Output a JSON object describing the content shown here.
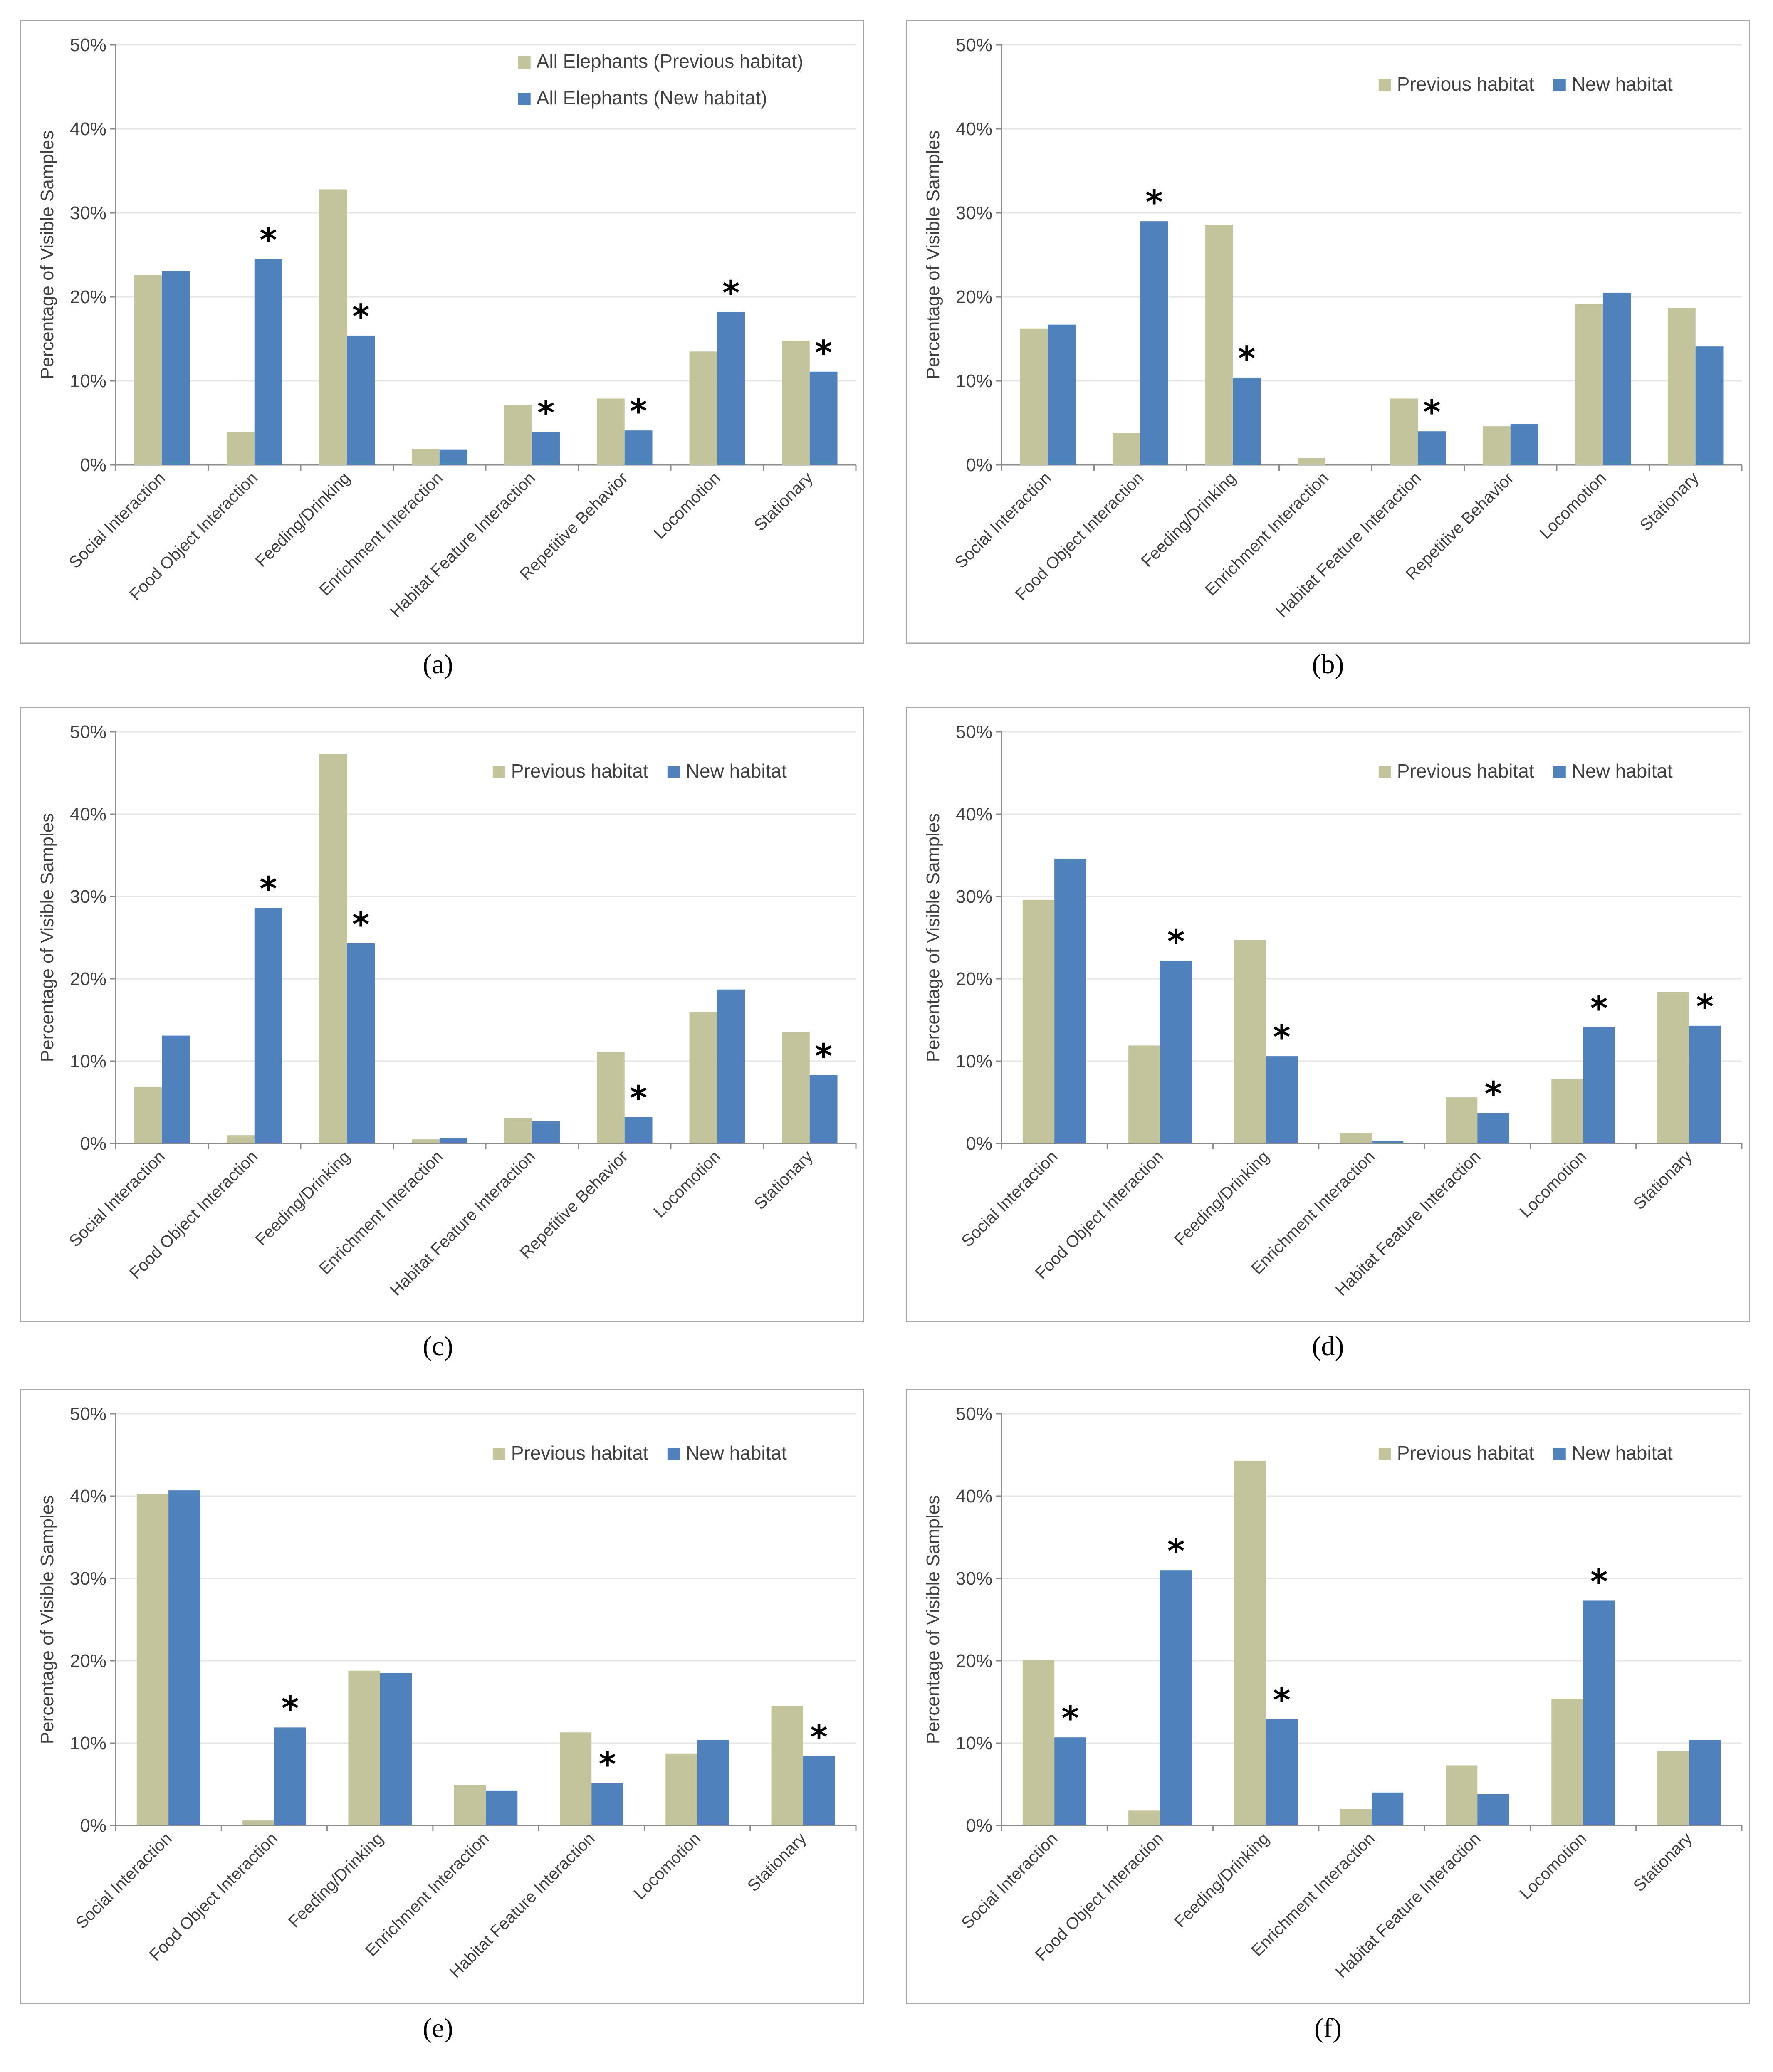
{
  "colors": {
    "previous": "#c4c49c",
    "new": "#4f81bd",
    "grid": "#e6e6e6",
    "axis": "#8c8c8c",
    "frame": "#a6a6a6",
    "text": "#404040"
  },
  "chart_data": [
    {
      "panel": "a",
      "type": "bar",
      "ylabel": "Percentage of Visible Samples",
      "ylim": [
        0,
        50
      ],
      "yticks": [
        "0%",
        "10%",
        "20%",
        "30%",
        "40%",
        "50%"
      ],
      "categories": [
        "Social Interaction",
        "Food Object Interaction",
        "Feeding/Drinking",
        "Enrichment Interaction",
        "Habitat Feature Interaction",
        "Repetitive Behavior",
        "Locomotion",
        "Stationary"
      ],
      "series": [
        {
          "name": "All Elephants (Previous habitat)",
          "values": [
            22.6,
            3.9,
            32.8,
            1.9,
            7.1,
            7.9,
            13.5,
            14.8
          ]
        },
        {
          "name": "All Elephants (New habitat)",
          "values": [
            23.1,
            24.5,
            15.4,
            1.8,
            3.9,
            4.1,
            18.2,
            11.1
          ]
        }
      ],
      "significant": [
        false,
        true,
        true,
        false,
        true,
        true,
        true,
        true
      ],
      "legend_layout": "stacked",
      "caption": "(a)"
    },
    {
      "panel": "b",
      "type": "bar",
      "ylabel": "Percentage of Visible Samples",
      "ylim": [
        0,
        50
      ],
      "yticks": [
        "0%",
        "10%",
        "20%",
        "30%",
        "40%",
        "50%"
      ],
      "categories": [
        "Social Interaction",
        "Food Object Interaction",
        "Feeding/Drinking",
        "Enrichment Interaction",
        "Habitat Feature Interaction",
        "Repetitive Behavior",
        "Locomotion",
        "Stationary"
      ],
      "series": [
        {
          "name": "Previous habitat",
          "values": [
            16.2,
            3.8,
            28.6,
            0.8,
            7.9,
            4.6,
            19.2,
            18.7
          ]
        },
        {
          "name": "New habitat",
          "values": [
            16.7,
            29.0,
            10.4,
            0,
            4.0,
            4.9,
            20.5,
            14.1
          ]
        }
      ],
      "significant": [
        false,
        true,
        true,
        false,
        true,
        false,
        false,
        false
      ],
      "legend_layout": "inline",
      "caption": "(b)"
    },
    {
      "panel": "c",
      "type": "bar",
      "ylabel": "Percentage of Visible Samples",
      "ylim": [
        0,
        50
      ],
      "yticks": [
        "0%",
        "10%",
        "20%",
        "30%",
        "40%",
        "50%"
      ],
      "categories": [
        "Social Interaction",
        "Food Object Interaction",
        "Feeding/Drinking",
        "Enrichment Interaction",
        "Habitat Feature Interaction",
        "Repetitive Behavior",
        "Locomotion",
        "Stationary"
      ],
      "series": [
        {
          "name": "Previous habitat",
          "values": [
            6.9,
            1.0,
            47.3,
            0.5,
            3.1,
            11.1,
            16.0,
            13.5
          ]
        },
        {
          "name": "New habitat",
          "values": [
            13.1,
            28.6,
            24.3,
            0.7,
            2.7,
            3.2,
            18.7,
            8.3
          ]
        }
      ],
      "significant": [
        false,
        true,
        true,
        false,
        false,
        true,
        false,
        true
      ],
      "legend_layout": "inline",
      "caption": "(c)"
    },
    {
      "panel": "d",
      "type": "bar",
      "ylabel": "Percentage of Visible Samples",
      "ylim": [
        0,
        50
      ],
      "yticks": [
        "0%",
        "10%",
        "20%",
        "30%",
        "40%",
        "50%"
      ],
      "categories": [
        "Social Interaction",
        "Food Object Interaction",
        "Feeding/Drinking",
        "Enrichment Interaction",
        "Habitat Feature Interaction",
        "Locomotion",
        "Stationary"
      ],
      "series": [
        {
          "name": "Previous habitat",
          "values": [
            29.6,
            11.9,
            24.7,
            1.3,
            5.6,
            7.8,
            18.4
          ]
        },
        {
          "name": "New habitat",
          "values": [
            34.6,
            22.2,
            10.6,
            0.3,
            3.7,
            14.1,
            14.3
          ]
        }
      ],
      "significant": [
        false,
        true,
        true,
        false,
        true,
        true,
        true
      ],
      "legend_layout": "inline",
      "caption": "(d)"
    },
    {
      "panel": "e",
      "type": "bar",
      "ylabel": "Percentage of Visible Samples",
      "ylim": [
        0,
        50
      ],
      "yticks": [
        "0%",
        "10%",
        "20%",
        "30%",
        "40%",
        "50%"
      ],
      "categories": [
        "Social Interaction",
        "Food Object Interaction",
        "Feeding/Drinking",
        "Enrichment Interaction",
        "Habitat Feature Interaction",
        "Locomotion",
        "Stationary"
      ],
      "series": [
        {
          "name": "Previous habitat",
          "values": [
            40.3,
            0.6,
            18.8,
            4.9,
            11.3,
            8.7,
            14.5
          ]
        },
        {
          "name": "New habitat",
          "values": [
            40.7,
            11.9,
            18.5,
            4.2,
            5.1,
            10.4,
            8.4
          ]
        }
      ],
      "significant": [
        false,
        true,
        false,
        false,
        true,
        false,
        true
      ],
      "legend_layout": "inline",
      "caption": "(e)"
    },
    {
      "panel": "f",
      "type": "bar",
      "ylabel": "Percentage of Visible Samples",
      "ylim": [
        0,
        50
      ],
      "yticks": [
        "0%",
        "10%",
        "20%",
        "30%",
        "40%",
        "50%"
      ],
      "categories": [
        "Social Interaction",
        "Food Object Interaction",
        "Feeding/Drinking",
        "Enrichment Interaction",
        "Habitat Feature Interaction",
        "Locomotion",
        "Stationary"
      ],
      "series": [
        {
          "name": "Previous habitat",
          "values": [
            20.1,
            1.8,
            44.3,
            2.0,
            7.3,
            15.4,
            9.0
          ]
        },
        {
          "name": "New habitat",
          "values": [
            10.7,
            31.0,
            12.9,
            4.0,
            3.8,
            27.3,
            10.4
          ]
        }
      ],
      "significant": [
        true,
        true,
        true,
        false,
        false,
        true,
        false
      ],
      "legend_layout": "inline",
      "caption": "(f)"
    }
  ]
}
